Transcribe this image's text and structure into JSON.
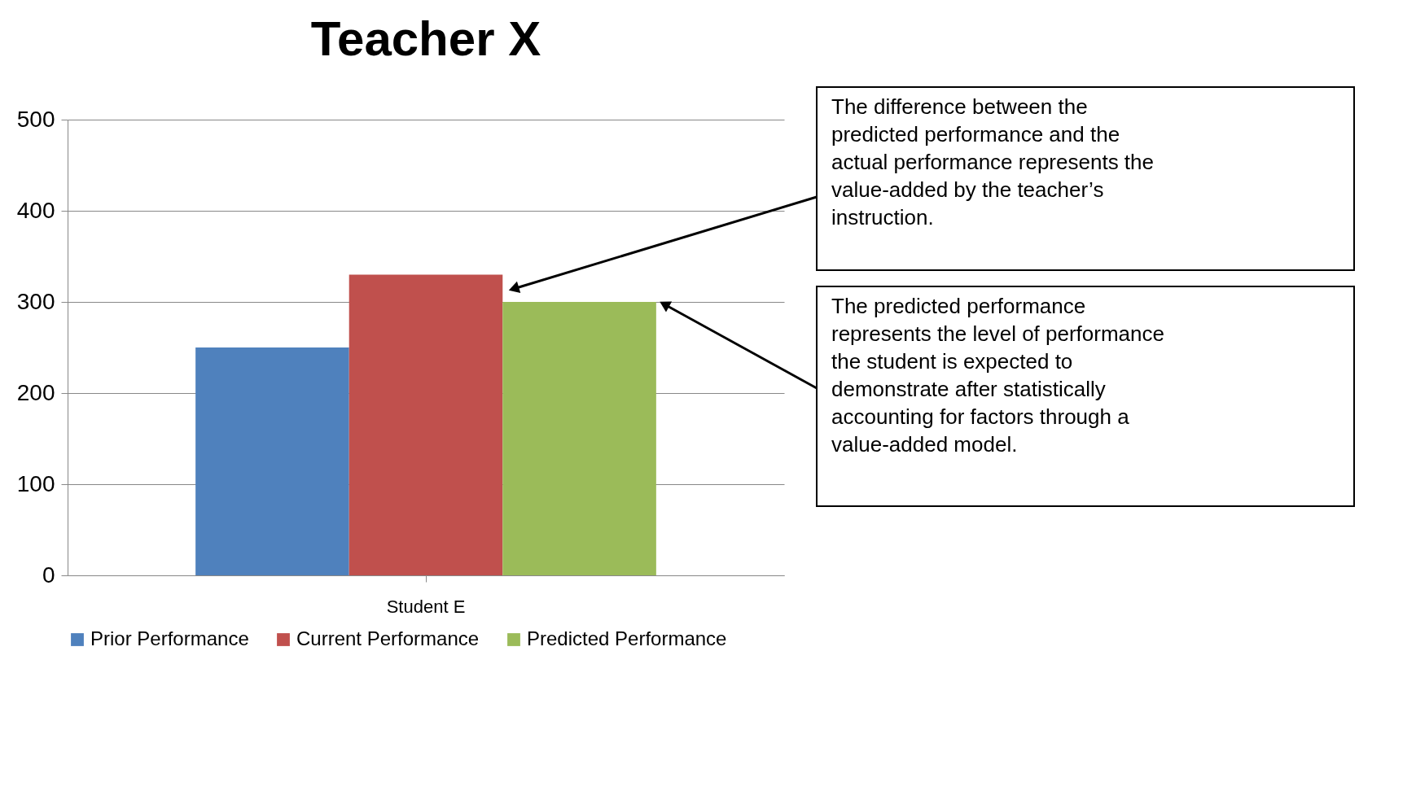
{
  "chart_data": {
    "type": "bar",
    "title": "Teacher X",
    "categories": [
      "Student E"
    ],
    "series": [
      {
        "name": "Prior Performance",
        "color": "#4f81bd",
        "values": [
          250
        ]
      },
      {
        "name": "Current Performance",
        "color": "#c0504d",
        "values": [
          330
        ]
      },
      {
        "name": "Predicted Performance",
        "color": "#9bbb59",
        "values": [
          300
        ]
      }
    ],
    "ylim": [
      0,
      500
    ],
    "yticks": [
      0,
      100,
      200,
      300,
      400,
      500
    ],
    "grid": "y",
    "legend": "bottom",
    "annotations": [
      "The difference between the\npredicted performance and the\nactual performance represents the\nvalue-added by the teacher’s\ninstruction.",
      "The predicted performance\nrepresents the level of performance\nthe student is expected to\ndemonstrate after statistically\naccounting for factors through a\nvalue-added model."
    ]
  }
}
